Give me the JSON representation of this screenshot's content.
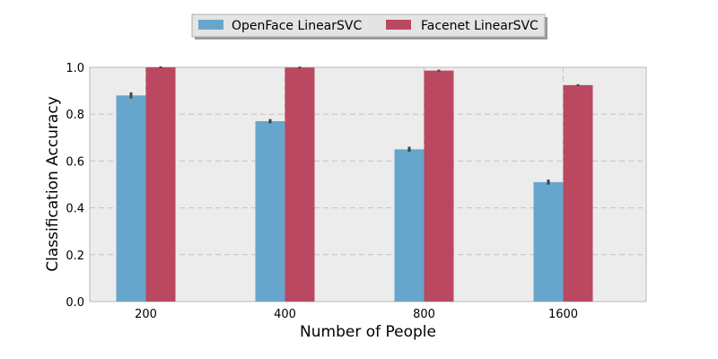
{
  "chart_data": {
    "type": "bar",
    "categories": [
      "200",
      "400",
      "800",
      "1600"
    ],
    "series": [
      {
        "name": "OpenFace LinearSVC",
        "values": [
          0.88,
          0.77,
          0.65,
          0.51
        ],
        "errors": [
          0.013,
          0.009,
          0.011,
          0.011
        ],
        "color": "#67a6cc"
      },
      {
        "name": "Facenet LinearSVC",
        "values": [
          1.0,
          0.999,
          0.986,
          0.924
        ],
        "errors": [
          0.0,
          0.002,
          0.002,
          0.003
        ],
        "color": "#bb4861"
      }
    ],
    "xlabel": "Number of People",
    "ylabel": "Classification Accuracy",
    "ylim": [
      0,
      1.0
    ],
    "yticks": [
      0.0,
      0.2,
      0.4,
      0.6,
      0.8,
      1.0
    ],
    "grid": true,
    "legend_position": "top-center"
  }
}
